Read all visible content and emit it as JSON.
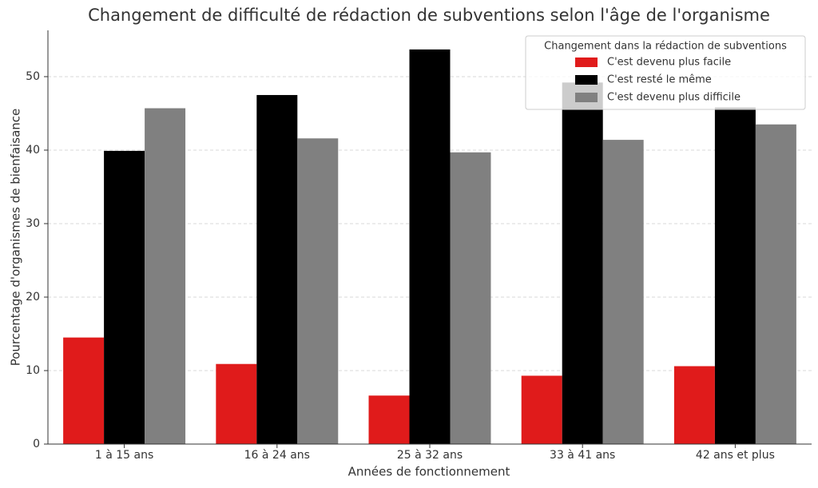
{
  "chart_data": {
    "type": "bar",
    "title": "Changement de difficulté de rédaction de subventions selon l'âge de l'organisme",
    "x_label": "Années de fonctionnement",
    "y_label": "Pourcentage d'organismes de bienfaisance",
    "categories": [
      "1 à 15 ans",
      "16 à 24 ans",
      "25 à 32 ans",
      "33 à 41 ans",
      "42 ans et plus"
    ],
    "series": [
      {
        "name": "C'est devenu plus facile",
        "color": "#e01b1b",
        "values": [
          14.5,
          10.9,
          6.6,
          9.3,
          10.6
        ]
      },
      {
        "name": "C'est resté le même",
        "color": "#000000",
        "values": [
          39.9,
          47.5,
          53.7,
          49.2,
          45.8
        ]
      },
      {
        "name": "C'est devenu plus difficile",
        "color": "#808080",
        "values": [
          45.7,
          41.6,
          39.7,
          41.4,
          43.5
        ]
      }
    ],
    "legend_title": "Changement dans la rédaction de subventions",
    "legend_position": "upper right",
    "ylim": [
      0,
      56.3
    ],
    "yticks": [
      0,
      10,
      20,
      30,
      40,
      50
    ],
    "grid": true
  }
}
